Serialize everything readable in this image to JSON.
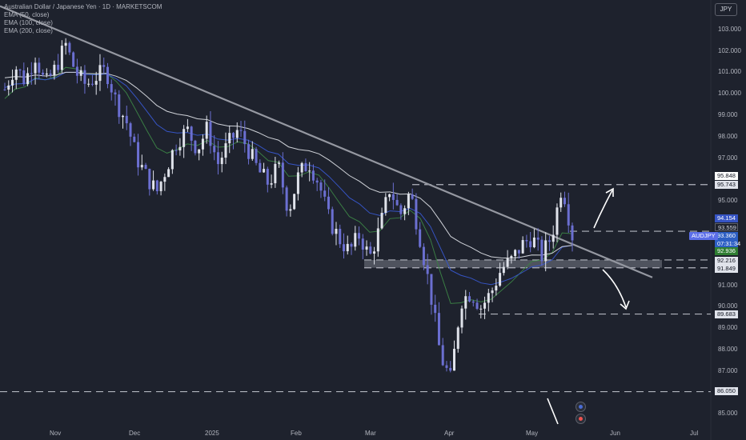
{
  "chart_title": "Australian Dollar / Japanese Yen · 1D · MARKETSCOM",
  "indicators": [
    "EMA (50, close)",
    "EMA (100, close)",
    "EMA (200, close)"
  ],
  "currency_button": "JPY",
  "price_axis_labels": [
    "103.000",
    "102.000",
    "101.000",
    "100.000",
    "99.000",
    "98.000",
    "97.000",
    "95.000",
    "91.000",
    "90.000",
    "89.000",
    "88.000",
    "87.000",
    "85.000"
  ],
  "time_axis_labels": [
    "Nov",
    "Dec",
    "2025",
    "Feb",
    "Mar",
    "Apr",
    "May",
    "Jun",
    "Jul"
  ],
  "price_tags": {
    "level_95848": "95.848",
    "level_95743": "95.743",
    "level_94154": "94.154",
    "level_93559": "93.559",
    "symbol": "AUDJPY",
    "current_price": "93.360",
    "countdown": "07:31:34",
    "level_92936": "92.936",
    "level_92216": "92.216",
    "level_91849": "91.849",
    "level_89683": "89.683",
    "level_86050": "86.050"
  },
  "colors": {
    "background": "#1e222d",
    "bull_candle": "#e0e3eb",
    "bear_candle": "#6b6fd1",
    "ema50": "#3a7d44",
    "ema100": "#3654c4",
    "ema200": "#cfd2d8",
    "trendline": "#9598a1",
    "current_price_tag": "#2d5fc4",
    "ema50_tag": "#2e7d32",
    "symbol_tag": "#5b6ee8"
  },
  "chart_data": {
    "type": "candlestick",
    "title": "Australian Dollar / Japanese Yen · 1D · MARKETSCOM",
    "symbol": "AUDJPY",
    "timeframe": "1D",
    "last_price": 93.36,
    "ylim": [
      84.7,
      104.0
    ],
    "x_ticks": [
      "Nov",
      "Dec",
      "2025",
      "Feb",
      "Mar",
      "Apr",
      "May",
      "Jun",
      "Jul"
    ],
    "horizontal_levels": [
      95.743,
      93.559,
      92.216,
      91.849,
      89.683,
      86.05
    ],
    "support_zone": [
      91.849,
      92.216
    ],
    "trendline": {
      "from_price": 104.1,
      "to_price": 91.4
    },
    "price_path": [
      100.2,
      101.3,
      100.6,
      101.8,
      100.4,
      101.2,
      102.3,
      101.0,
      100.4,
      100.8,
      101.1,
      99.6,
      98.7,
      97.0,
      96.1,
      95.4,
      96.6,
      97.8,
      98.3,
      97.4,
      98.4,
      96.7,
      97.6,
      98.3,
      97.4,
      96.4,
      95.8,
      96.6,
      94.5,
      96.2,
      96.8,
      95.8,
      94.1,
      93.2,
      92.6,
      93.4,
      92.3,
      93.7,
      95.6,
      94.3,
      95.4,
      93.2,
      90.7,
      87.7,
      86.6,
      90.3,
      90.7,
      90.0,
      90.7,
      91.8,
      92.2,
      92.9,
      93.3,
      92.4,
      93.4,
      95.8,
      93.36
    ]
  }
}
